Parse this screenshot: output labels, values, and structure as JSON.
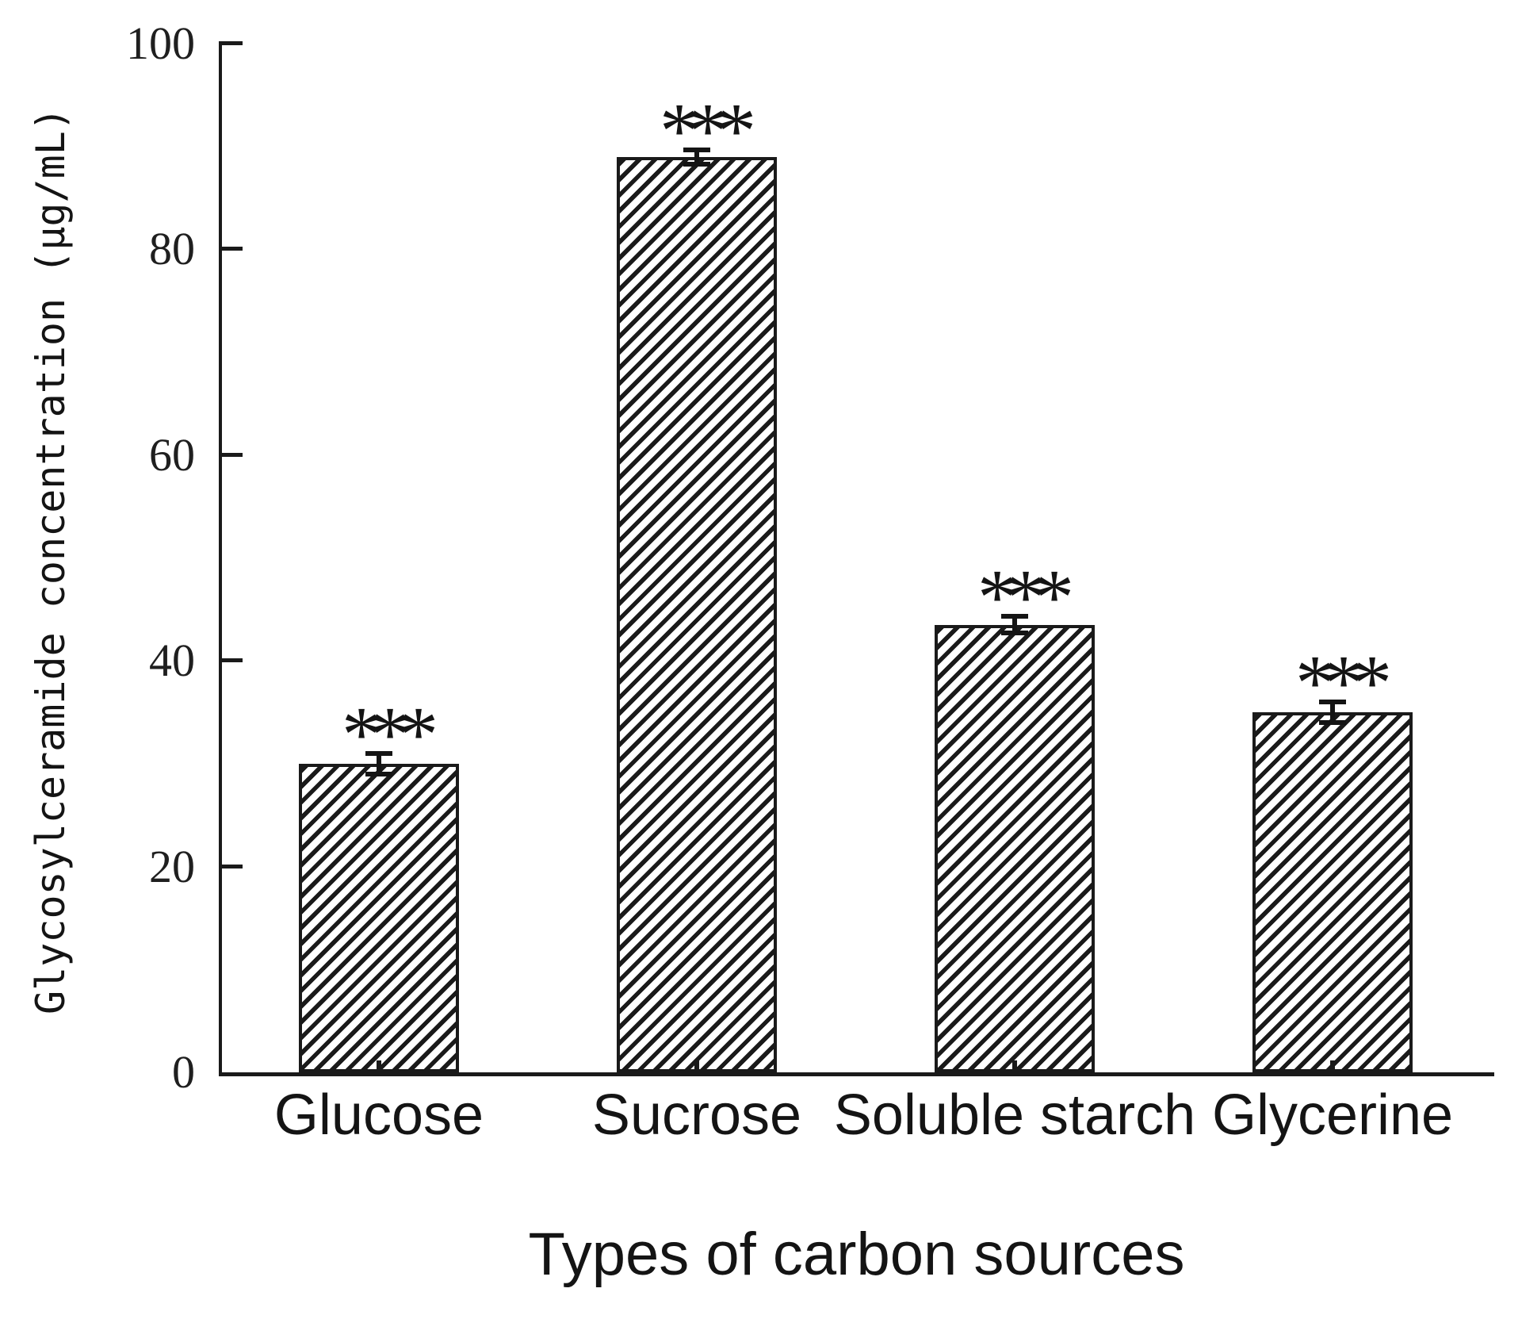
{
  "figure": {
    "background": "#ffffff",
    "ink_color": "#1a1a1a"
  },
  "chart_data": {
    "type": "bar",
    "title": "",
    "xlabel": "Types of carbon sources",
    "ylabel": "Glycosylceramide concentration (μg/mL)",
    "categories": [
      "Glucose",
      "Sucrose",
      "Soluble starch",
      "Glycerine"
    ],
    "values": [
      30,
      89,
      43.5,
      35
    ],
    "errors": [
      1,
      0.7,
      0.8,
      1
    ],
    "significance": [
      "***",
      "***",
      "***",
      "***"
    ],
    "ylim": [
      0,
      100
    ],
    "yticks": [
      0,
      20,
      40,
      60,
      80,
      100
    ],
    "grid": false,
    "legend": null,
    "bar_style": {
      "fill": "diagonal-hatch",
      "hatch_direction": "/",
      "outline": "#1a1a1a",
      "face": "#ffffff"
    }
  }
}
